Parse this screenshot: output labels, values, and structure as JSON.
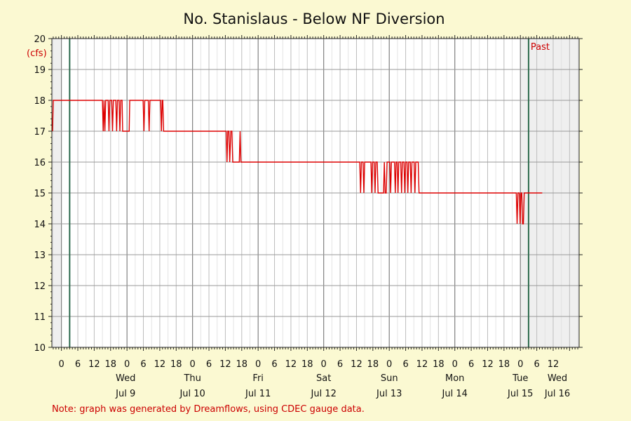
{
  "chart_data": {
    "type": "line",
    "title": "No. Stanislaus - Below NF Diversion",
    "ylabel": "(cfs)",
    "ylim": [
      10,
      20
    ],
    "yticks": [
      10,
      11,
      12,
      13,
      14,
      15,
      16,
      17,
      18,
      19,
      20
    ],
    "x_unit": "hours since Jul 8 00:00",
    "xlim": [
      -3.5,
      189.5
    ],
    "hour_ticks": [
      "0",
      "6",
      "12",
      "18",
      "0",
      "6",
      "12",
      "18",
      "0",
      "6",
      "12",
      "18",
      "0",
      "6",
      "12",
      "18",
      "0",
      "6",
      "12",
      "18",
      "0",
      "6",
      "12",
      "18",
      "0",
      "6",
      "12",
      "18",
      "0",
      "6",
      "12"
    ],
    "days": [
      {
        "weekday": "Wed",
        "date": "Jul 9"
      },
      {
        "weekday": "Thu",
        "date": "Jul 10"
      },
      {
        "weekday": "Fri",
        "date": "Jul 11"
      },
      {
        "weekday": "Sat",
        "date": "Jul 12"
      },
      {
        "weekday": "Sun",
        "date": "Jul 13"
      },
      {
        "weekday": "Mon",
        "date": "Jul 14"
      },
      {
        "weekday": "Tue",
        "date": "Jul 15"
      },
      {
        "weekday": "Wed",
        "date": "Jul 16"
      }
    ],
    "past_label": "Past",
    "grid": true,
    "series": [
      {
        "name": "",
        "color": "#dd0000",
        "data": [
          [
            -3.25,
            17
          ],
          [
            -3,
            18
          ],
          [
            15,
            18
          ],
          [
            15.3,
            17
          ],
          [
            15.6,
            18
          ],
          [
            15.9,
            17
          ],
          [
            16.2,
            18
          ],
          [
            17.1,
            18
          ],
          [
            17.4,
            17
          ],
          [
            17.7,
            18
          ],
          [
            18.4,
            18
          ],
          [
            18.7,
            17
          ],
          [
            19,
            18
          ],
          [
            19.9,
            18
          ],
          [
            20.2,
            17
          ],
          [
            20.5,
            18
          ],
          [
            21.1,
            18
          ],
          [
            21.4,
            17
          ],
          [
            21.7,
            18
          ],
          [
            22.2,
            18
          ],
          [
            22.4,
            17
          ],
          [
            24.8,
            17
          ],
          [
            25,
            18
          ],
          [
            29.9,
            18
          ],
          [
            30.2,
            17
          ],
          [
            30.5,
            18
          ],
          [
            31.8,
            18
          ],
          [
            32.1,
            17
          ],
          [
            32.4,
            18
          ],
          [
            36.3,
            18
          ],
          [
            36.6,
            17
          ],
          [
            36.9,
            18
          ],
          [
            37.1,
            18
          ],
          [
            37.4,
            17
          ],
          [
            60.3,
            17
          ],
          [
            60.6,
            16
          ],
          [
            60.9,
            17
          ],
          [
            61.3,
            17
          ],
          [
            61.6,
            16
          ],
          [
            62,
            17
          ],
          [
            62.4,
            17
          ],
          [
            62.7,
            16
          ],
          [
            65.1,
            16
          ],
          [
            65.4,
            17
          ],
          [
            65.7,
            16
          ],
          [
            109.2,
            16
          ],
          [
            109.5,
            15
          ],
          [
            109.8,
            16
          ],
          [
            110.4,
            16
          ],
          [
            110.7,
            15
          ],
          [
            111,
            16
          ],
          [
            113.3,
            16
          ],
          [
            113.6,
            15
          ],
          [
            113.9,
            16
          ],
          [
            114.5,
            16
          ],
          [
            114.8,
            15
          ],
          [
            115.1,
            16
          ],
          [
            115.6,
            16
          ],
          [
            115.9,
            15
          ],
          [
            117.9,
            15
          ],
          [
            118.2,
            16
          ],
          [
            118.5,
            15
          ],
          [
            118.9,
            15
          ],
          [
            119.2,
            16
          ],
          [
            120.2,
            16
          ],
          [
            120.5,
            15
          ],
          [
            120.8,
            16
          ],
          [
            121.9,
            16
          ],
          [
            122.2,
            15
          ],
          [
            122.5,
            16
          ],
          [
            122.9,
            16
          ],
          [
            123.2,
            15
          ],
          [
            123.5,
            16
          ],
          [
            124.2,
            16
          ],
          [
            124.5,
            15
          ],
          [
            124.8,
            16
          ],
          [
            125.4,
            16
          ],
          [
            125.7,
            15
          ],
          [
            126,
            16
          ],
          [
            126.5,
            16
          ],
          [
            126.8,
            15
          ],
          [
            127.1,
            16
          ],
          [
            127.7,
            16
          ],
          [
            128,
            15
          ],
          [
            128.3,
            16
          ],
          [
            129.1,
            16
          ],
          [
            129.4,
            15
          ],
          [
            129.7,
            16
          ],
          [
            130.6,
            16
          ],
          [
            130.9,
            15
          ],
          [
            166.5,
            15
          ],
          [
            166.8,
            14
          ],
          [
            167.1,
            15
          ],
          [
            167.6,
            15
          ],
          [
            167.9,
            14
          ],
          [
            168.2,
            15
          ],
          [
            168.5,
            15
          ],
          [
            168.8,
            14
          ],
          [
            169.1,
            14
          ],
          [
            169.4,
            15
          ],
          [
            176,
            15
          ]
        ]
      }
    ]
  },
  "note": "Note: graph was generated by Dreamflows, using CDEC gauge data.",
  "colors": {
    "background": "#fbf9d2",
    "plot_area": "#ffffff",
    "shaded_region": "#efefef",
    "series": "#dd0000",
    "day_marker": "#2e6b4e",
    "grid": "#c8c8c8"
  }
}
